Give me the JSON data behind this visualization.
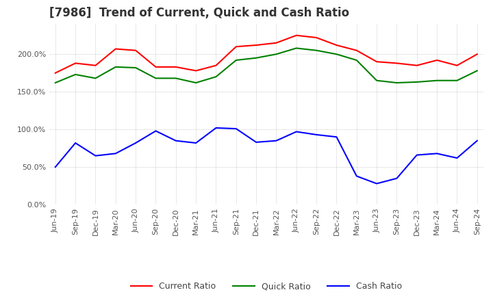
{
  "title": "[7986]  Trend of Current, Quick and Cash Ratio",
  "x_labels": [
    "Jun-19",
    "Sep-19",
    "Dec-19",
    "Mar-20",
    "Jun-20",
    "Sep-20",
    "Dec-20",
    "Mar-21",
    "Jun-21",
    "Sep-21",
    "Dec-21",
    "Mar-22",
    "Jun-22",
    "Sep-22",
    "Dec-22",
    "Mar-23",
    "Jun-23",
    "Sep-23",
    "Dec-23",
    "Mar-24",
    "Jun-24",
    "Sep-24"
  ],
  "current_ratio": [
    175,
    188,
    185,
    207,
    205,
    183,
    183,
    178,
    185,
    210,
    212,
    215,
    225,
    222,
    212,
    205,
    190,
    188,
    185,
    192,
    185,
    200
  ],
  "quick_ratio": [
    162,
    173,
    168,
    183,
    182,
    168,
    168,
    162,
    170,
    192,
    195,
    200,
    208,
    205,
    200,
    192,
    165,
    162,
    163,
    165,
    165,
    178
  ],
  "cash_ratio": [
    50,
    82,
    65,
    68,
    82,
    98,
    85,
    82,
    102,
    101,
    83,
    85,
    97,
    93,
    90,
    38,
    28,
    35,
    66,
    68,
    62,
    85
  ],
  "ylim": [
    0,
    240
  ],
  "yticks": [
    0,
    50,
    100,
    150,
    200
  ],
  "current_color": "#ff0000",
  "quick_color": "#008000",
  "cash_color": "#0000ff",
  "background_color": "#ffffff",
  "grid_color": "#aaaaaa",
  "title_fontsize": 12,
  "legend_fontsize": 9,
  "tick_fontsize": 8
}
